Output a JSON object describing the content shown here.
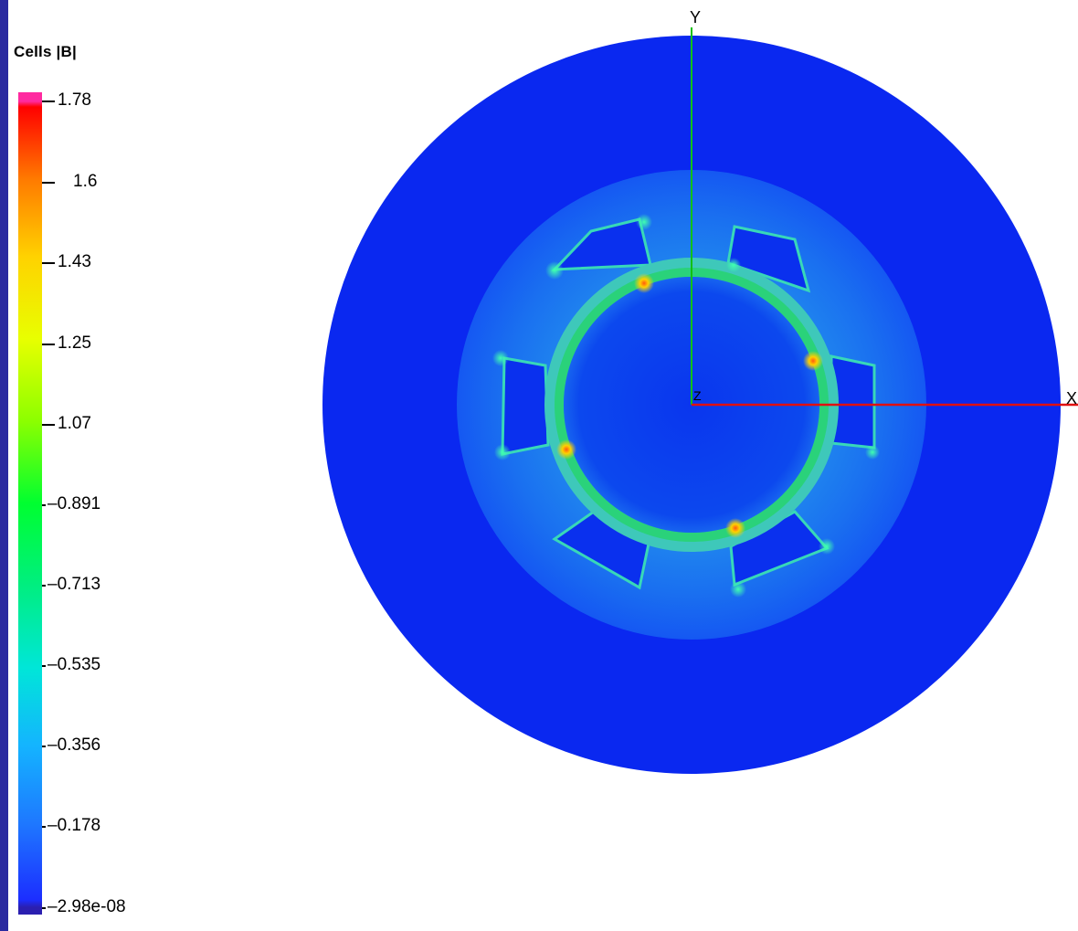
{
  "legend": {
    "title": "Cells |B|",
    "ticks": [
      "1.78",
      "1.6",
      "1.43",
      "1.25",
      "1.07",
      "0.891",
      "0.713",
      "0.535",
      "0.356",
      "0.178",
      "2.98e-08"
    ]
  },
  "axes": {
    "x_label": "X",
    "y_label": "Y",
    "z_label": "Z",
    "x_color": "#e01010",
    "y_color": "#10c010"
  },
  "colors": {
    "outer_region": "#0a28f0",
    "stator_ring": "#1f6cf2",
    "gap_ring": "#2fd27a",
    "hotspot": "#ff5a10",
    "left_frame": "#2a2aa0"
  }
}
